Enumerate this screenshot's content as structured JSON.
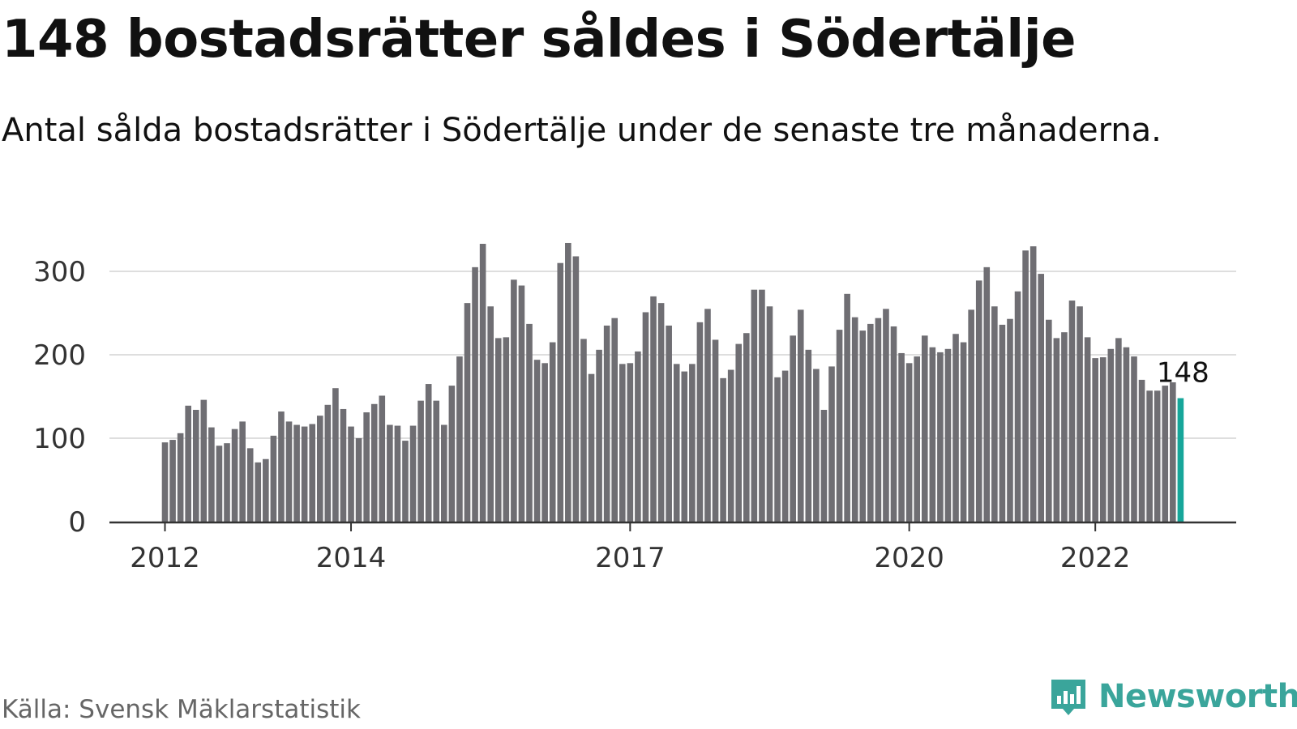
{
  "header": {
    "title": "148 bostadsrätter såldes i Södertälje",
    "subtitle": "Antal sålda bostadsrätter i Södertälje under de senaste tre månaderna."
  },
  "footer": {
    "source": "Källa: Svensk Mäklarstatistik",
    "brand": "Newsworthy",
    "brand_icon": "bar-chart-speech-bubble-icon",
    "brand_color": "#3aa59b"
  },
  "chart_data": {
    "type": "bar",
    "title": "",
    "xlabel": "",
    "ylabel": "",
    "ylim": [
      0,
      350
    ],
    "yticks": [
      0,
      100,
      200,
      300
    ],
    "grid": true,
    "x_start": "2012-01",
    "x_end": "2022-11",
    "xticks": [
      {
        "label": "2012",
        "month": "2012-01"
      },
      {
        "label": "2014",
        "month": "2014-01"
      },
      {
        "label": "2017",
        "month": "2017-01"
      },
      {
        "label": "2020",
        "month": "2020-01"
      },
      {
        "label": "2022",
        "month": "2022-01"
      }
    ],
    "bar_color": "#6f6e73",
    "highlight_color": "#16a69a",
    "highlight_label": "148",
    "values": [
      95,
      98,
      106,
      139,
      134,
      146,
      113,
      91,
      94,
      111,
      120,
      88,
      71,
      75,
      103,
      132,
      120,
      116,
      114,
      117,
      127,
      140,
      160,
      135,
      114,
      100,
      131,
      141,
      151,
      116,
      115,
      97,
      115,
      145,
      165,
      145,
      116,
      163,
      198,
      262,
      305,
      333,
      258,
      220,
      221,
      290,
      283,
      237,
      194,
      190,
      215,
      310,
      334,
      318,
      219,
      177,
      206,
      235,
      244,
      189,
      190,
      204,
      251,
      270,
      262,
      235,
      189,
      180,
      189,
      239,
      255,
      218,
      172,
      182,
      213,
      226,
      278,
      278,
      258,
      173,
      181,
      223,
      254,
      206,
      183,
      134,
      186,
      230,
      273,
      245,
      229,
      237,
      244,
      255,
      234,
      202,
      190,
      198,
      223,
      209,
      203,
      207,
      225,
      215,
      254,
      289,
      305,
      258,
      236,
      243,
      276,
      325,
      330,
      297,
      242,
      220,
      227,
      265,
      258,
      221,
      196,
      197,
      207,
      220,
      209,
      198,
      170,
      157,
      157,
      163,
      167,
      148
    ]
  }
}
